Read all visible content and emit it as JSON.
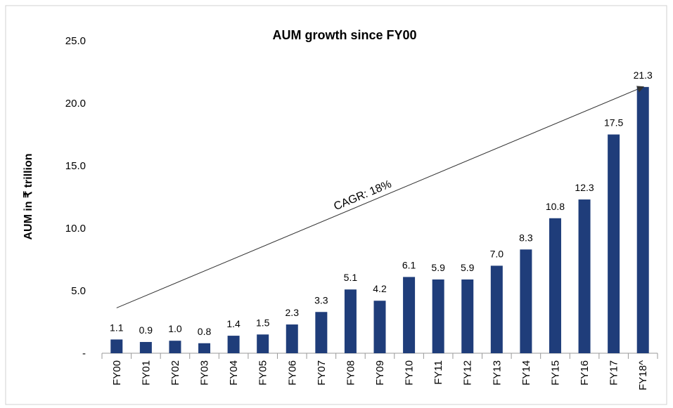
{
  "chart_data": {
    "type": "bar",
    "title": "AUM growth since FY00",
    "y_label": "AUM in ₹ trillion",
    "annotation": "CAGR: 18%",
    "categories": [
      "FY00",
      "FY01",
      "FY02",
      "FY03",
      "FY04",
      "FY05",
      "FY06",
      "FY07",
      "FY08",
      "FY09",
      "FY10",
      "FY11",
      "FY12",
      "FY13",
      "FY14",
      "FY15",
      "FY16",
      "FY17",
      "FY18^"
    ],
    "values": [
      1.1,
      0.9,
      1.0,
      0.8,
      1.4,
      1.5,
      2.3,
      3.3,
      5.1,
      4.2,
      6.1,
      5.9,
      5.9,
      7.0,
      8.3,
      10.8,
      12.3,
      17.5,
      21.3
    ],
    "value_labels": [
      "1.1",
      "0.9",
      "1.0",
      "0.8",
      "1.4",
      "1.5",
      "2.3",
      "3.3",
      "5.1",
      "4.2",
      "6.1",
      "5.9",
      "5.9",
      "7.0",
      "8.3",
      "10.8",
      "12.3",
      "17.5",
      "21.3"
    ],
    "color": "#1f3d7a",
    "ylim": [
      0,
      25
    ],
    "yticks": [
      {
        "value": 0,
        "label": "-"
      },
      {
        "value": 5,
        "label": "5.0"
      },
      {
        "value": 10,
        "label": "10.0"
      },
      {
        "value": 15,
        "label": "15.0"
      },
      {
        "value": 20,
        "label": "20.0"
      },
      {
        "value": 25,
        "label": "25.0"
      }
    ],
    "grid": false
  }
}
